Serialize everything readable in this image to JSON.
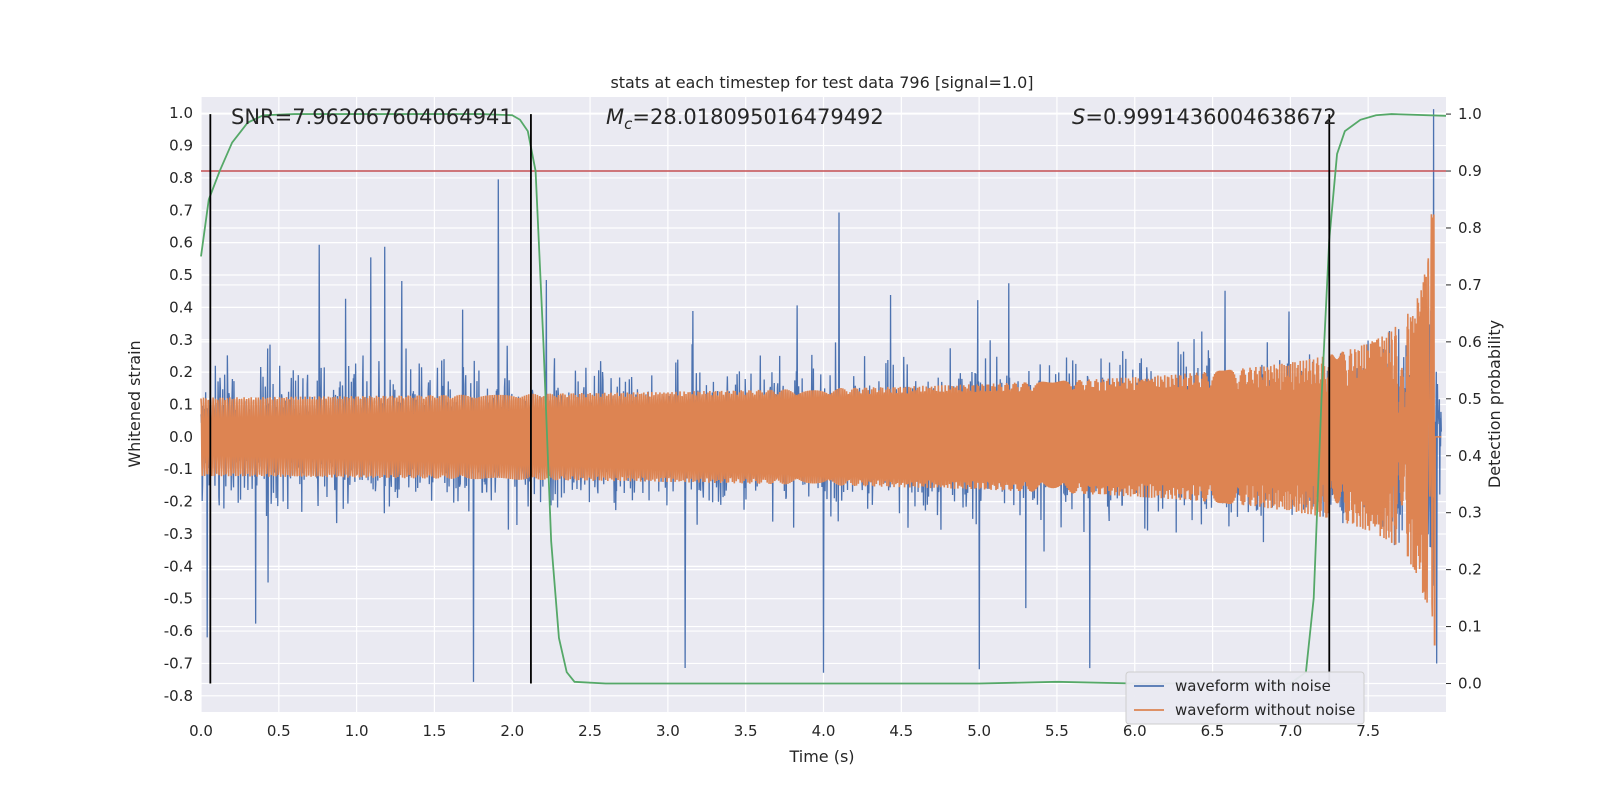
{
  "chart_data": {
    "type": "line",
    "title": "stats at each timestep for test data 796 [signal=1.0]",
    "xlabel": "Time (s)",
    "ylabel": "Whitened strain",
    "y2label": "Detection probability",
    "xlim": [
      0.0,
      8.0
    ],
    "ylim": [
      -0.85,
      1.05
    ],
    "y2lim": [
      -0.05,
      1.03
    ],
    "xticks": [
      "0.0",
      "0.5",
      "1.0",
      "1.5",
      "2.0",
      "2.5",
      "3.0",
      "3.5",
      "4.0",
      "4.5",
      "5.0",
      "5.5",
      "6.0",
      "6.5",
      "7.0",
      "7.5"
    ],
    "yticks": [
      "1.0",
      "0.9",
      "0.8",
      "0.7",
      "0.6",
      "0.5",
      "0.4",
      "0.3",
      "0.2",
      "0.1",
      "0.0",
      "-0.1",
      "-0.2",
      "-0.3",
      "-0.4",
      "-0.5",
      "-0.6",
      "-0.7",
      "-0.8"
    ],
    "y2ticks": [
      "1.0",
      "0.9",
      "0.8",
      "0.7",
      "0.6",
      "0.5",
      "0.4",
      "0.3",
      "0.2",
      "0.1",
      "0.0"
    ],
    "grid": true,
    "legend_placement": "lower-right",
    "annotations": {
      "snr": "SNR=7.962067604064941",
      "mc_symbol": "M",
      "mc_sub": "c",
      "mc_value": "=28.018095016479492",
      "s_symbol": "S",
      "s_value": "=0.9991436004638672"
    },
    "series": [
      {
        "name": "waveform with noise",
        "color": "#4c72b0",
        "description_values": "noise envelope amplitude approx 0.35 with spikes up to 0.75",
        "spikes": [
          [
            0.76,
            0.52
          ],
          [
            0.93,
            0.5
          ],
          [
            1.09,
            0.63
          ],
          [
            1.18,
            0.64
          ],
          [
            1.29,
            0.45
          ],
          [
            1.68,
            0.47
          ],
          [
            1.91,
            0.75
          ],
          [
            2.22,
            0.47
          ],
          [
            3.16,
            0.46
          ],
          [
            3.83,
            0.45
          ],
          [
            4.1,
            0.62
          ],
          [
            4.43,
            0.53
          ],
          [
            4.99,
            0.5
          ],
          [
            5.19,
            0.53
          ],
          [
            6.58,
            0.53
          ],
          [
            6.99,
            0.52
          ],
          [
            7.92,
            1.0
          ],
          [
            0.04,
            -0.55
          ],
          [
            0.35,
            -0.63
          ],
          [
            0.43,
            -0.5
          ],
          [
            1.75,
            -0.68
          ],
          [
            3.11,
            -0.63
          ],
          [
            4.0,
            -0.64
          ],
          [
            5.0,
            -0.67
          ],
          [
            5.3,
            -0.63
          ],
          [
            5.71,
            -0.61
          ],
          [
            7.94,
            -0.7
          ]
        ]
      },
      {
        "name": "waveform without noise",
        "color": "#dd8452",
        "description_values": "chirp growing from 0 to peak ~0.85 near t=7.93 s",
        "peak_time": 7.93,
        "peak_amplitude": 0.85
      },
      {
        "name": "",
        "color": "#55a868",
        "axis": "right",
        "x": [
          0.0,
          0.05,
          0.12,
          0.2,
          0.3,
          0.4,
          0.6,
          1.0,
          1.5,
          1.8,
          2.0,
          2.05,
          2.1,
          2.15,
          2.2,
          2.25,
          2.3,
          2.35,
          2.4,
          2.6,
          3.0,
          4.0,
          5.0,
          5.5,
          6.0,
          6.5,
          7.0,
          7.1,
          7.15,
          7.2,
          7.25,
          7.3,
          7.35,
          7.45,
          7.55,
          7.65,
          8.0
        ],
        "y": [
          0.75,
          0.85,
          0.9,
          0.95,
          0.985,
          0.998,
          1.0,
          1.0,
          1.0,
          1.0,
          0.998,
          0.99,
          0.97,
          0.9,
          0.6,
          0.25,
          0.08,
          0.02,
          0.003,
          0.0,
          0.0,
          0.0,
          0.0,
          0.003,
          0.0,
          0.0,
          0.0,
          0.02,
          0.15,
          0.5,
          0.78,
          0.93,
          0.97,
          0.99,
          0.998,
          1.0,
          0.997
        ]
      }
    ],
    "threshold_line": {
      "value": 0.9,
      "axis": "right",
      "color": "#c44e52"
    },
    "event_lines": {
      "times": [
        0.06,
        2.12,
        7.25
      ],
      "color": "#000000"
    }
  }
}
